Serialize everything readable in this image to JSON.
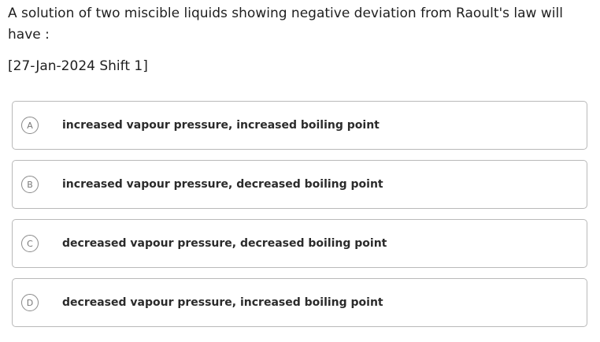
{
  "question": {
    "text": "A solution of two miscible liquids showing negative deviation from Raoult's law will have :",
    "exam_tag": "[27-Jan-2024 Shift 1]"
  },
  "options": [
    {
      "letter": "A",
      "text": "increased vapour pressure, increased boiling point"
    },
    {
      "letter": "B",
      "text": "increased vapour pressure, decreased boiling point"
    },
    {
      "letter": "C",
      "text": "decreased vapour pressure, decreased boiling point"
    },
    {
      "letter": "D",
      "text": "decreased vapour pressure, increased boiling point"
    }
  ]
}
